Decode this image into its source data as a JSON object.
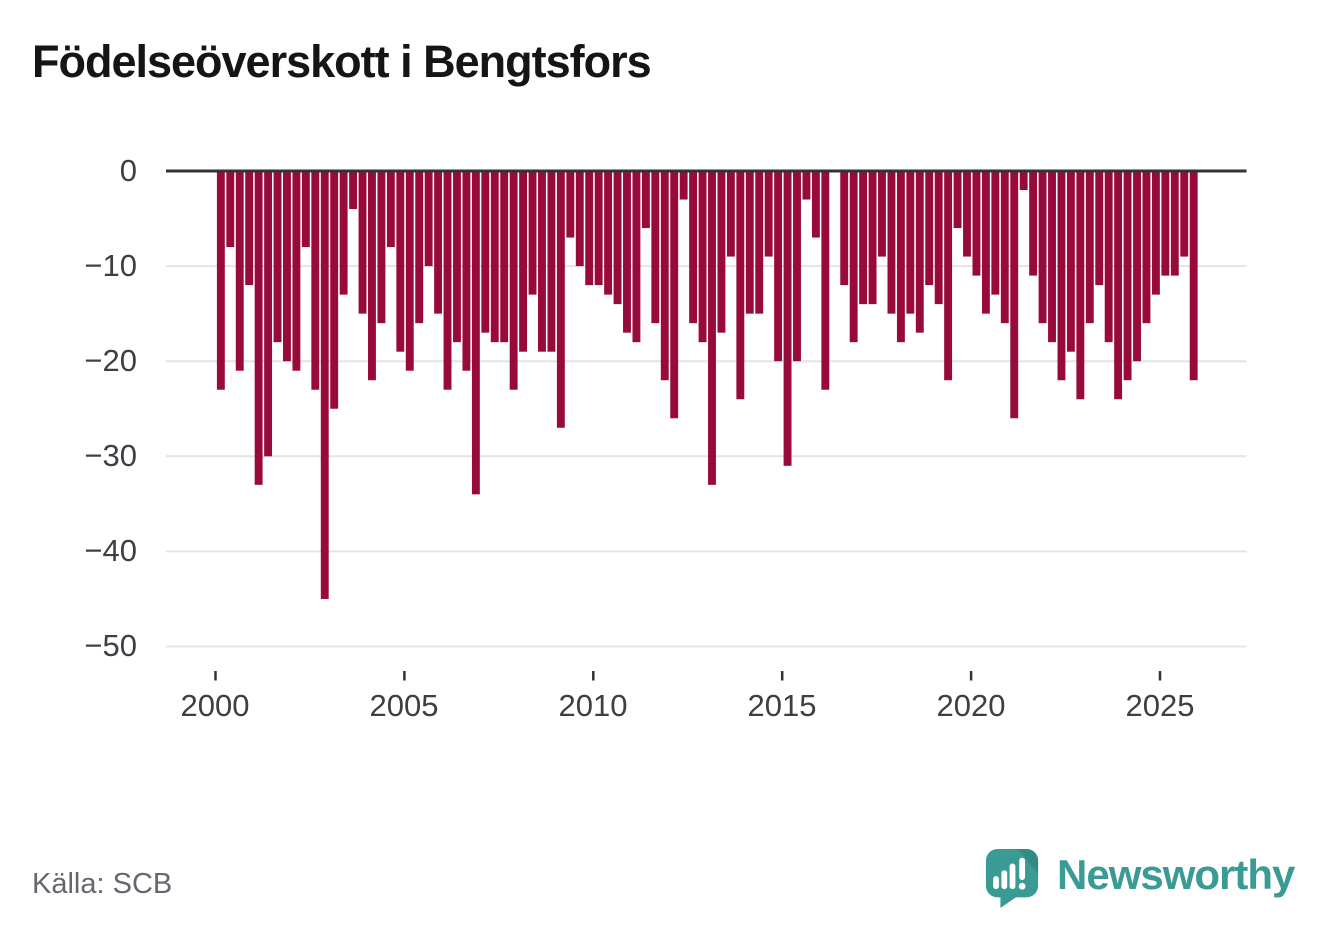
{
  "title": "Födelseöverskott i Bengtsfors",
  "source": "Källa: SCB",
  "logo": {
    "text": "Newsworthy",
    "color": "#3a9b95"
  },
  "chart_data": {
    "type": "bar",
    "title": "Födelseöverskott i Bengtsfors",
    "xlabel": "",
    "ylabel": "",
    "ylim": [
      -50,
      0
    ],
    "grid": "horizontal",
    "legend": "none",
    "bar_color": "#990a3c",
    "axis_color": "#333333",
    "grid_color": "#e4e4e4",
    "x_ticks": [
      2000,
      2005,
      2010,
      2015,
      2020,
      2025
    ],
    "x_tick_labels": [
      "2000",
      "2005",
      "2010",
      "2015",
      "2020",
      "2025"
    ],
    "y_tick_labels": [
      "0",
      "−10",
      "−20",
      "−30",
      "−40",
      "−50"
    ],
    "x": [
      "2000 Q1",
      "2000 Q2",
      "2000 Q3",
      "2000 Q4",
      "2001 Q1",
      "2001 Q2",
      "2001 Q3",
      "2001 Q4",
      "2002 Q1",
      "2002 Q2",
      "2002 Q3",
      "2002 Q4",
      "2003 Q1",
      "2003 Q2",
      "2003 Q3",
      "2003 Q4",
      "2004 Q1",
      "2004 Q2",
      "2004 Q3",
      "2004 Q4",
      "2005 Q1",
      "2005 Q2",
      "2005 Q3",
      "2005 Q4",
      "2006 Q1",
      "2006 Q2",
      "2006 Q3",
      "2006 Q4",
      "2007 Q1",
      "2007 Q2",
      "2007 Q3",
      "2007 Q4",
      "2008 Q1",
      "2008 Q2",
      "2008 Q3",
      "2008 Q4",
      "2009 Q1",
      "2009 Q2",
      "2009 Q3",
      "2009 Q4",
      "2010 Q1",
      "2010 Q2",
      "2010 Q3",
      "2010 Q4",
      "2011 Q1",
      "2011 Q2",
      "2011 Q3",
      "2011 Q4",
      "2012 Q1",
      "2012 Q2",
      "2012 Q3",
      "2012 Q4",
      "2013 Q1",
      "2013 Q2",
      "2013 Q3",
      "2013 Q4",
      "2014 Q1",
      "2014 Q2",
      "2014 Q3",
      "2014 Q4",
      "2015 Q1",
      "2015 Q2",
      "2015 Q3",
      "2015 Q4",
      "2016 Q1",
      "2016 Q2",
      "2016 Q3",
      "2016 Q4",
      "2017 Q1",
      "2017 Q2",
      "2017 Q3",
      "2017 Q4",
      "2018 Q1",
      "2018 Q2",
      "2018 Q3",
      "2018 Q4",
      "2019 Q1",
      "2019 Q2",
      "2019 Q3",
      "2019 Q4",
      "2020 Q1",
      "2020 Q2",
      "2020 Q3",
      "2020 Q4",
      "2021 Q1",
      "2021 Q2",
      "2021 Q3",
      "2021 Q4",
      "2022 Q1",
      "2022 Q2",
      "2022 Q3",
      "2022 Q4",
      "2023 Q1",
      "2023 Q2",
      "2023 Q3",
      "2023 Q4",
      "2024 Q1",
      "2024 Q2",
      "2024 Q3",
      "2024 Q4",
      "2025 Q1",
      "2025 Q2",
      "2025 Q3",
      "2025 Q4"
    ],
    "values": [
      -23,
      -8,
      -21,
      -12,
      -33,
      -30,
      -18,
      -20,
      -21,
      -8,
      -23,
      -45,
      -25,
      -13,
      -4,
      -15,
      -22,
      -16,
      -8,
      -19,
      -21,
      -16,
      -10,
      -15,
      -23,
      -18,
      -21,
      -34,
      -17,
      -18,
      -18,
      -23,
      -19,
      -13,
      -19,
      -19,
      -27,
      -7,
      -10,
      -12,
      -12,
      -13,
      -14,
      -17,
      -18,
      -6,
      -16,
      -22,
      -26,
      -3,
      -16,
      -18,
      -33,
      -17,
      -9,
      -24,
      -15,
      -15,
      -9,
      -20,
      -31,
      -20,
      -3,
      -7,
      -23,
      0,
      -12,
      -18,
      -14,
      -14,
      -9,
      -15,
      -18,
      -15,
      -17,
      -12,
      -14,
      -22,
      -6,
      -9,
      -11,
      -15,
      -13,
      -16,
      -26,
      -2,
      -11,
      -16,
      -18,
      -22,
      -19,
      -24,
      -16,
      -12,
      -18,
      -24,
      -22,
      -20,
      -16,
      -13,
      -11,
      -11,
      -9,
      -22
    ]
  }
}
